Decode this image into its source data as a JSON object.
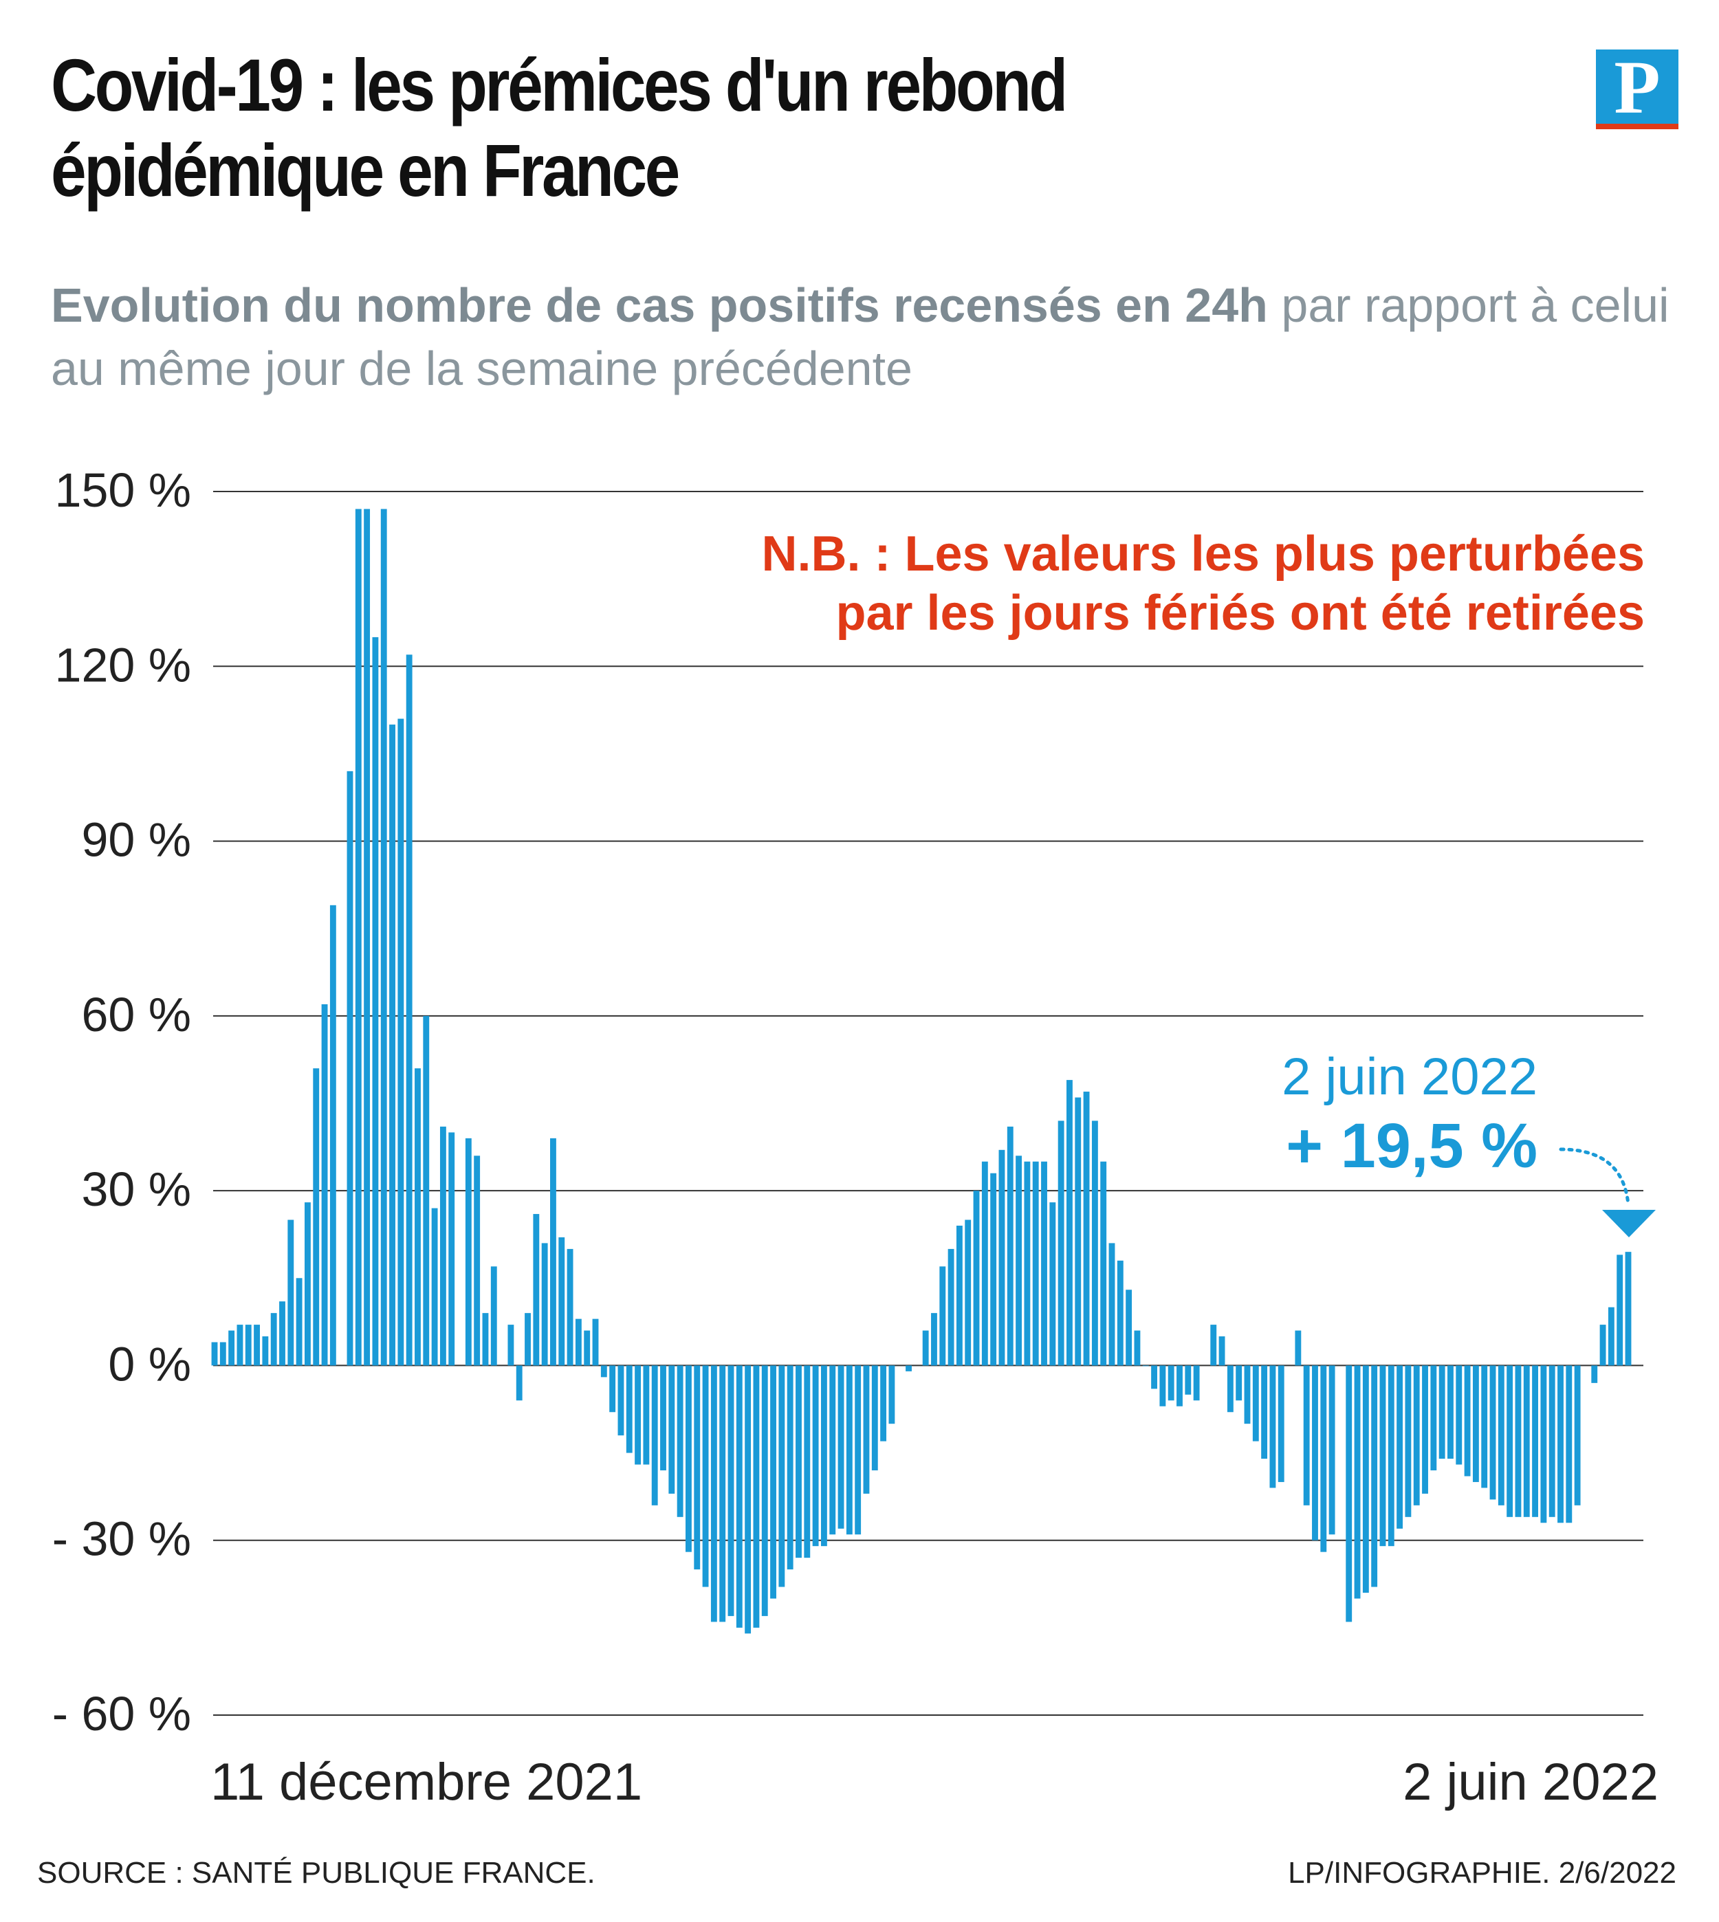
{
  "header": {
    "title_line1": "Covid-19 : les prémices d'un rebond",
    "title_line2": "épidémique en France",
    "logo_letter": "P",
    "subtitle_bold": "Evolution du nombre de cas positifs recensés en 24h",
    "subtitle_rest": " par rapport à celui au même jour de la semaine précédente"
  },
  "colors": {
    "bar": "#1a9ad7",
    "note": "#e03a17",
    "highlight": "#1a9ad7",
    "logo_blue": "#1a9ad7",
    "logo_red": "#e03a17"
  },
  "chart_data": {
    "type": "bar",
    "ylim": [
      -60,
      150
    ],
    "yticks": [
      150,
      120,
      90,
      60,
      30,
      0,
      -30,
      -60
    ],
    "ytick_labels": [
      "150 %",
      "120 %",
      "90 %",
      "60 %",
      "30 %",
      "0 %",
      "- 30 %",
      "- 60 %"
    ],
    "x_start_label": "11 décembre 2021",
    "x_end_label": "2 juin 2022",
    "grid": true,
    "values": [
      4,
      4,
      6,
      7,
      7,
      7,
      5,
      9,
      11,
      25,
      15,
      28,
      51,
      62,
      79,
      null,
      102,
      147,
      147,
      125,
      147,
      110,
      111,
      122,
      51,
      60,
      27,
      41,
      40,
      null,
      39,
      36,
      9,
      17,
      null,
      7,
      -6,
      9,
      26,
      21,
      39,
      22,
      20,
      8,
      6,
      8,
      -2,
      -8,
      -12,
      -15,
      -17,
      -17,
      -24,
      -18,
      -22,
      -26,
      -32,
      -35,
      -38,
      -44,
      -44,
      -43,
      -45,
      -46,
      -45,
      -43,
      -40,
      -38,
      -35,
      -33,
      -33,
      -31,
      -31,
      -29,
      -28,
      -29,
      -29,
      -22,
      -18,
      -13,
      -10,
      null,
      -1,
      null,
      6,
      9,
      17,
      20,
      24,
      25,
      30,
      35,
      33,
      37,
      41,
      36,
      35,
      35,
      35,
      28,
      42,
      49,
      46,
      47,
      42,
      35,
      21,
      18,
      13,
      6,
      0,
      -4,
      -7,
      -6,
      -7,
      -5,
      -6,
      null,
      7,
      5,
      -8,
      -6,
      -10,
      -13,
      -16,
      -21,
      -20,
      null,
      6,
      -24,
      -30,
      -32,
      -29,
      null,
      -44,
      -40,
      -39,
      -38,
      -31,
      -31,
      -28,
      -26,
      -24,
      -22,
      -18,
      -16,
      -16,
      -17,
      -19,
      -20,
      -21,
      -23,
      -24,
      -26,
      -26,
      -26,
      -26,
      -27,
      -26,
      -27,
      -27,
      -24,
      null,
      -3,
      7,
      10,
      19,
      19.5
    ],
    "annotations": {
      "note_line1": "N.B. : Les valeurs les plus perturbées",
      "note_line2": "par les jours fériés ont été retirées",
      "last_date": "2 juin 2022",
      "last_value_label": "+ 19,5 %"
    }
  },
  "footer": {
    "source": "SOURCE : SANTÉ PUBLIQUE FRANCE.",
    "credit": "LP/INFOGRAPHIE.  2/6/2022"
  }
}
